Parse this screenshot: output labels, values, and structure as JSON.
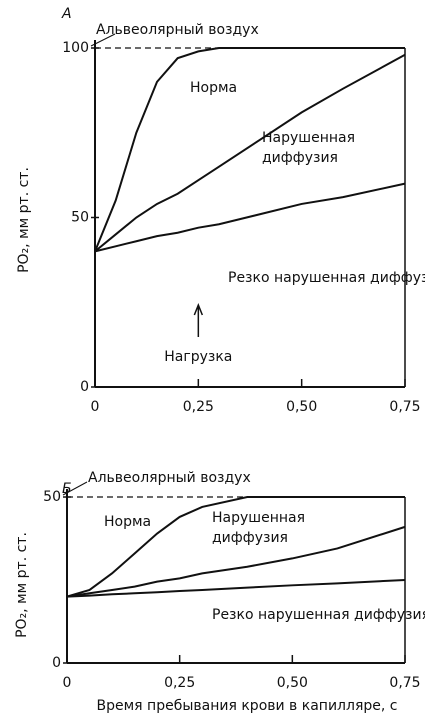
{
  "chart_data": [
    {
      "type": "line",
      "panel": "А",
      "ylabel": "PO₂, мм рт. ст.",
      "x": [
        0,
        0.05,
        0.1,
        0.15,
        0.2,
        0.25,
        0.3,
        0.4,
        0.5,
        0.6,
        0.75
      ],
      "series": [
        {
          "name": "Альвеолярный воздух",
          "color": "#111",
          "dashed": true,
          "values": [
            100,
            100,
            100,
            100,
            100,
            100,
            100,
            100,
            100,
            100,
            100
          ]
        },
        {
          "name": "Норма",
          "color": "#111",
          "values": [
            40,
            55,
            75,
            90,
            97,
            99,
            100,
            100,
            100,
            100,
            100
          ]
        },
        {
          "name": "Нарушенная диффузия",
          "color": "#111",
          "values": [
            40,
            45,
            50,
            54,
            57,
            61,
            65,
            73,
            81,
            88,
            98
          ]
        },
        {
          "name": "Резко нарушенная диффузия",
          "color": "#111",
          "values": [
            40,
            41.5,
            43,
            44.5,
            45.5,
            47,
            48,
            51,
            54,
            56,
            60
          ]
        }
      ],
      "annotations": [
        "Нагрузка"
      ],
      "xlim": [
        0,
        0.75
      ],
      "ylim": [
        0,
        100
      ],
      "xticks": [
        {
          "value": 0,
          "label": "0"
        },
        {
          "value": 0.25,
          "label": "0,25"
        },
        {
          "value": 0.5,
          "label": "0,50"
        },
        {
          "value": 0.75,
          "label": "0,75"
        }
      ],
      "yticks": [
        0,
        50,
        100
      ]
    },
    {
      "type": "line",
      "panel": "Б",
      "ylabel": "PO₂, мм рт. ст.",
      "xlabel": "Время пребывания крови в капилляре, с",
      "x": [
        0,
        0.05,
        0.1,
        0.15,
        0.2,
        0.25,
        0.3,
        0.4,
        0.5,
        0.6,
        0.75
      ],
      "series": [
        {
          "name": "Альвеолярный воздух",
          "color": "#111",
          "dashed": true,
          "values": [
            50,
            50,
            50,
            50,
            50,
            50,
            50,
            50,
            50,
            50,
            50
          ]
        },
        {
          "name": "Норма",
          "color": "#111",
          "values": [
            20,
            22,
            27,
            33,
            39,
            44,
            47,
            50,
            50,
            50,
            50
          ]
        },
        {
          "name": "Нарушенная диффузия",
          "color": "#111",
          "values": [
            20,
            21,
            22,
            23,
            24.5,
            25.5,
            27,
            29,
            31.5,
            34.5,
            41
          ]
        },
        {
          "name": "Резко нарушенная диффузия",
          "color": "#111",
          "values": [
            20,
            20.3,
            20.7,
            21,
            21.3,
            21.7,
            22,
            22.7,
            23.4,
            24,
            25
          ]
        }
      ],
      "xlim": [
        0,
        0.75
      ],
      "ylim": [
        0,
        50
      ],
      "xticks": [
        {
          "value": 0,
          "label": "0"
        },
        {
          "value": 0.25,
          "label": "0,25"
        },
        {
          "value": 0.5,
          "label": "0,50"
        },
        {
          "value": 0.75,
          "label": "0,75"
        }
      ],
      "yticks": [
        0,
        50
      ]
    }
  ]
}
